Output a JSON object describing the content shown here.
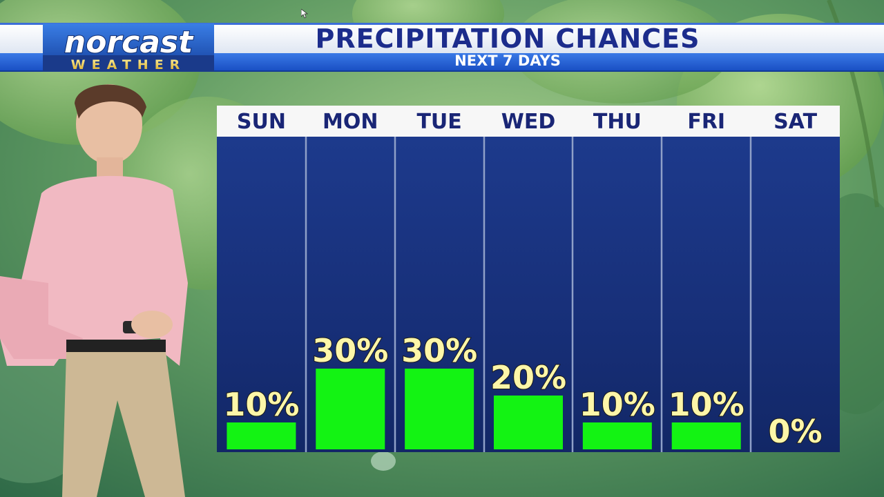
{
  "header": {
    "logo_top": "norcast",
    "logo_bottom": "WEATHER",
    "title": "PRECIPITATION CHANCES",
    "subtitle": "NEXT 7 DAYS"
  },
  "colors": {
    "bar": "#13f313",
    "panel": "#1a2f7a",
    "label_yellow": "#fdf6a8",
    "day_text": "#1a2676",
    "title_text": "#1c2c8c"
  },
  "chart_data": {
    "type": "bar",
    "categories": [
      "SUN",
      "MON",
      "TUE",
      "WED",
      "THU",
      "FRI",
      "SAT"
    ],
    "values": [
      10,
      30,
      30,
      20,
      10,
      10,
      0
    ],
    "labels": [
      "10%",
      "30%",
      "30%",
      "20%",
      "10%",
      "10%",
      "0%"
    ],
    "ylim": [
      0,
      100
    ],
    "grid": false
  }
}
